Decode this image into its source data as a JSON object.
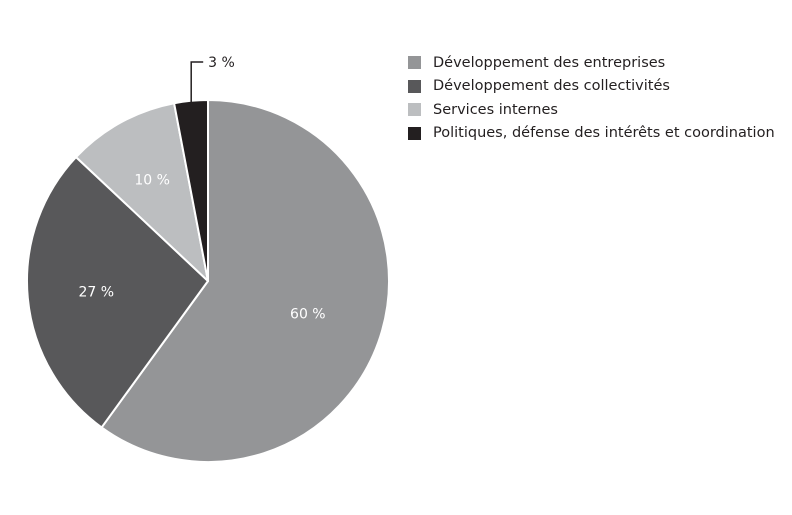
{
  "chart_data": {
    "type": "pie",
    "title": "",
    "legend_position": "top-right",
    "start_angle_deg": 0,
    "direction": "clockwise",
    "slices": [
      {
        "label": "Développement des entreprises",
        "value": 60,
        "value_label": "60 %",
        "color": "#949597",
        "label_placement": "inside"
      },
      {
        "label": "Développement des collectivités",
        "value": 27,
        "value_label": "27 %",
        "color": "#58585a",
        "label_placement": "inside"
      },
      {
        "label": "Services internes",
        "value": 10,
        "value_label": "10 %",
        "color": "#bcbec0",
        "label_placement": "inside"
      },
      {
        "label": "Politiques, défense des intérêts et coordination",
        "value": 3,
        "value_label": "3 %",
        "color": "#231f20",
        "label_placement": "outside-callout"
      }
    ]
  }
}
